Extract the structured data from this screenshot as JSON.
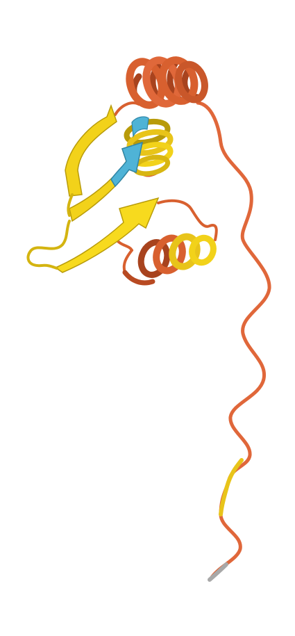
{
  "image": {
    "kind": "protein-ribbon-cartoon",
    "background": "#ffffff"
  },
  "colors": {
    "disordered_coil": "#e0673a",
    "helix_orange": "#d8602f",
    "helix_orange_dark": "#a8431e",
    "strand_yellow": "#f2d21a",
    "strand_yellow_dark": "#b89b0a",
    "strand_cyan": "#4fb3d6",
    "terminus_gray": "#a8a8a8"
  },
  "elements": [
    "n-terminal-helix",
    "beta-sheet",
    "small-helix",
    "c-terminal-tail"
  ]
}
